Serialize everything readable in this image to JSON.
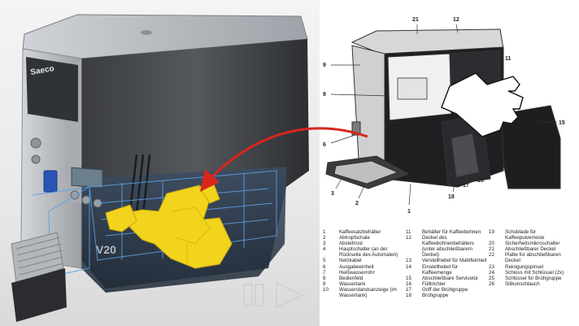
{
  "brand": {
    "logo_text": "Saeco"
  },
  "photo": {
    "panel_model_text": "V20"
  },
  "diagram": {
    "callouts": [
      "21",
      "12",
      "9",
      "11",
      "8",
      "6",
      "15",
      "3",
      "2",
      "1",
      "18",
      "17",
      "16"
    ],
    "legend": [
      [
        {
          "n": "1",
          "t": "Kaffeesatzbehälter"
        },
        {
          "n": "2",
          "t": "Abtropfschale"
        },
        {
          "n": "3",
          "t": "Abstellrost"
        },
        {
          "n": "4",
          "t": "Hauptschalter (an der Rückseite des Automaten)"
        },
        {
          "n": "5",
          "t": "Netzkabel"
        },
        {
          "n": "6",
          "t": "Ausgabeeinheit"
        },
        {
          "n": "7",
          "t": "Heißwasserrohr"
        },
        {
          "n": "8",
          "t": "Bedienfeld"
        },
        {
          "n": "9",
          "t": "Wassertank"
        },
        {
          "n": "10",
          "t": "Wasserstandsanzeige (im Wassertank)"
        }
      ],
      [
        {
          "n": "11",
          "t": "Behälter für Kaffeebohnen"
        },
        {
          "n": "12",
          "t": "Deckel des Kaffeebohnenbehälters (unter abschließbarem Deckel)"
        },
        {
          "n": "13",
          "t": "Verstellhebel für Mahlfeinheit"
        },
        {
          "n": "14",
          "t": "Einstellhebel für Kaffeemenge"
        },
        {
          "n": "15",
          "t": "Abschließbare Servicetür"
        },
        {
          "n": "16",
          "t": "Fülltrichter"
        },
        {
          "n": "17",
          "t": "Griff der Brühgruppe"
        },
        {
          "n": "18",
          "t": "Brühgruppe"
        }
      ],
      [
        {
          "n": "19",
          "t": "Schublade für Kaffeepulverreste"
        },
        {
          "n": "20",
          "t": "Sicherheitsmikroschalter"
        },
        {
          "n": "21",
          "t": "Abschließbarer Deckel"
        },
        {
          "n": "22",
          "t": "Platte für abschließbaren Deckel"
        },
        {
          "n": "23",
          "t": "Reinigungspinsel"
        },
        {
          "n": "24",
          "t": "Schloss mit Schlüssel (2x)"
        },
        {
          "n": "25",
          "t": "Schlüssel für Brühgruppe"
        },
        {
          "n": "26",
          "t": "Silikonschlauch"
        }
      ]
    ]
  },
  "colors": {
    "arrow": "#d8261c",
    "highlight": "#f2d41d",
    "wireframe": "#5aa0e0",
    "machine_dark": "#2a2c30",
    "machine_silver": "#b8bcc0"
  }
}
